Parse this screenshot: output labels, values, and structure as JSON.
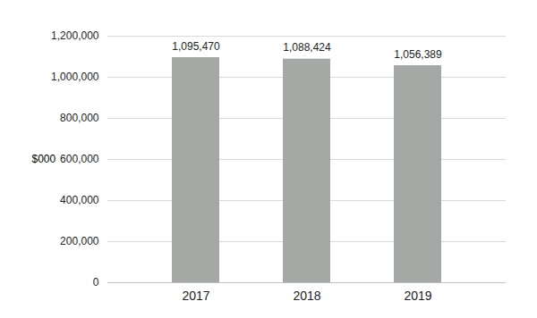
{
  "chart_data": {
    "type": "bar",
    "categories": [
      "2017",
      "2018",
      "2019"
    ],
    "values": [
      1095470,
      1088424,
      1056389
    ],
    "value_labels": [
      "1,095,470",
      "1,088,424",
      "1,056,389"
    ],
    "data_labels": true,
    "color": "#a5a9a6",
    "y_label": "$000",
    "ylim": [
      0,
      1200000
    ],
    "yticks": [
      0,
      {
        "value": 200000,
        "label": "200,000"
      },
      {
        "value": 400000,
        "label": "400,000"
      },
      {
        "value": 600000,
        "label": "600,000"
      },
      {
        "value": 800000,
        "label": "800,000"
      },
      {
        "value": 1000000,
        "label": "1,000,000"
      },
      {
        "value": 1200000,
        "label": "1,200,000"
      }
    ],
    "grid": true
  }
}
